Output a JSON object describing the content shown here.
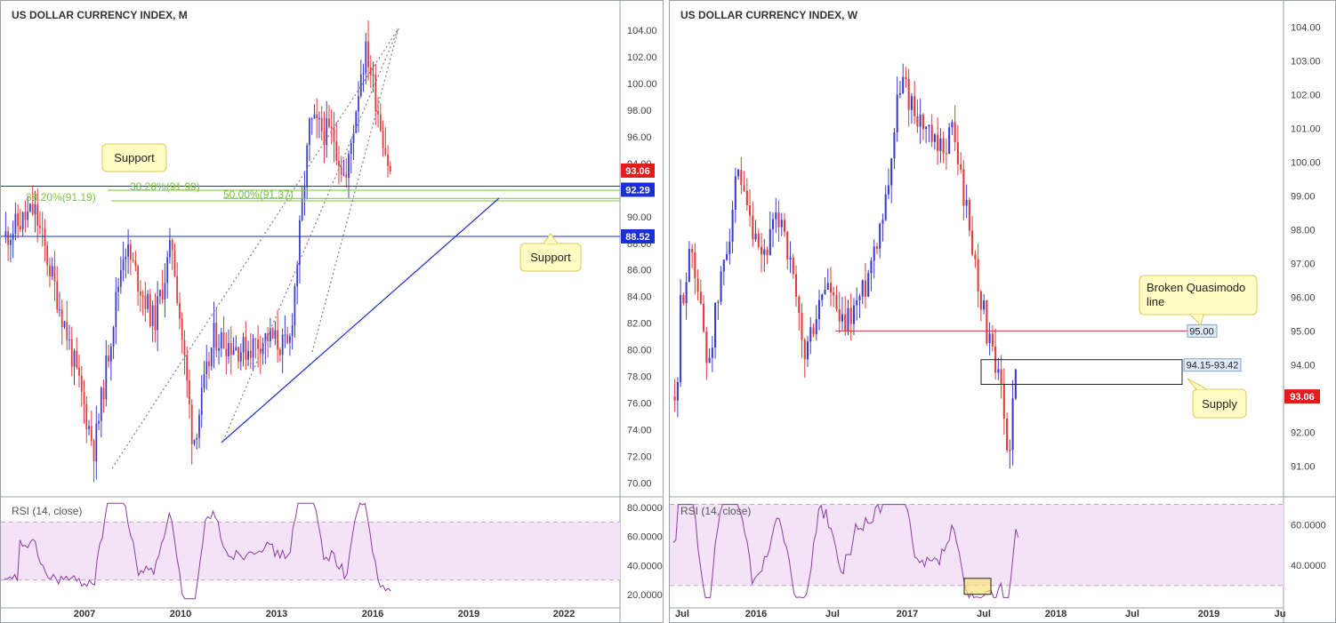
{
  "panels": [
    {
      "title": "US DOLLAR CURRENCY INDEX, M",
      "rsi_label": "RSI (14, close)",
      "y_ticks": [
        "104.00",
        "102.00",
        "100.00",
        "98.00",
        "96.00",
        "94.00",
        "92.00",
        "90.00",
        "88.00",
        "86.00",
        "84.00",
        "82.00",
        "80.00",
        "78.00",
        "76.00",
        "74.00",
        "72.00",
        "70.00"
      ],
      "x_ticks": [
        "2007",
        "2010",
        "2013",
        "2016",
        "2019",
        "2022"
      ],
      "rsi_ticks": [
        "80.0000",
        "60.0000",
        "40.0000",
        "20.0000"
      ],
      "price_badges": [
        {
          "text": "93.06",
          "color": "#e31b1b"
        },
        {
          "text": "92.29",
          "color": "#1a2fd6"
        },
        {
          "text": "88.52",
          "color": "#1a2fd6"
        }
      ],
      "annotations": {
        "fib_382": "38.20%(91.99)",
        "fib_382b": "38.20%(91.19)",
        "fib_500": "50.00%(91.37)",
        "callout_support_top": "Support",
        "callout_support_bottom": "Support"
      }
    },
    {
      "title": "US DOLLAR CURRENCY INDEX, W",
      "rsi_label": "RSI (14, close)",
      "y_ticks": [
        "104.00",
        "103.00",
        "102.00",
        "101.00",
        "100.00",
        "99.00",
        "98.00",
        "97.00",
        "96.00",
        "95.00",
        "94.00",
        "93.00",
        "92.00",
        "91.00"
      ],
      "x_ticks": [
        "Jul",
        "2016",
        "Jul",
        "2017",
        "Jul",
        "2018",
        "Jul",
        "2019",
        "Ju"
      ],
      "rsi_ticks": [
        "60.0000",
        "40.0000"
      ],
      "price_badges": [
        {
          "text": "93.06",
          "color": "#e31b1b"
        }
      ],
      "annotations": {
        "level_950": "95.00",
        "supply_zone": "94.15-93.42",
        "callout_quasimodo": "Broken Quasimodo line",
        "callout_supply": "Supply"
      }
    }
  ],
  "colors": {
    "bull": "#3b3bd1",
    "bear": "#e23b3b",
    "rsi_line": "#8e3aa5",
    "rsi_band": "#f3e3f7",
    "fib": "#7cc242"
  },
  "chart_data": [
    {
      "type": "candlestick",
      "title": "US DOLLAR CURRENCY INDEX, M",
      "ylim": [
        69.5,
        105
      ],
      "x_range": [
        "2005",
        "2023"
      ],
      "last_price": 93.06,
      "levels": [
        92.29,
        88.52
      ],
      "fib_levels": [
        {
          "label": "38.20%(91.99)",
          "value": 91.99
        },
        {
          "label": "38.20%(91.19)",
          "value": 91.19
        },
        {
          "label": "50.00%(91.37)",
          "value": 91.37
        }
      ],
      "trend_path": [
        [
          2005.0,
          88.5
        ],
        [
          2006.0,
          90.5
        ],
        [
          2007.0,
          82
        ],
        [
          2008.0,
          72.5
        ],
        [
          2009.0,
          88
        ],
        [
          2010.0,
          82
        ],
        [
          2010.6,
          88
        ],
        [
          2011.3,
          73
        ],
        [
          2012.0,
          81
        ],
        [
          2013.0,
          80
        ],
        [
          2013.8,
          81
        ],
        [
          2014.5,
          80
        ],
        [
          2015.2,
          97
        ],
        [
          2016.0,
          96
        ],
        [
          2016.4,
          92.5
        ],
        [
          2016.9,
          101
        ],
        [
          2017.1,
          102.5
        ],
        [
          2017.9,
          93
        ]
      ],
      "rsi": {
        "name": "RSI (14, close)",
        "ylim": [
          15,
          85
        ]
      }
    },
    {
      "type": "candlestick",
      "title": "US DOLLAR CURRENCY INDEX, W",
      "ylim": [
        90.3,
        104.3
      ],
      "x_range": [
        "2015-06",
        "2019-07"
      ],
      "last_price": 93.06,
      "levels": [
        95.0
      ],
      "zones": [
        {
          "label": "94.15-93.42",
          "top": 94.15,
          "bottom": 93.42
        }
      ],
      "trend_path": [
        [
          2015.45,
          95.5
        ],
        [
          2015.55,
          97.5
        ],
        [
          2015.65,
          94
        ],
        [
          2015.85,
          99.5
        ],
        [
          2016.0,
          97
        ],
        [
          2016.15,
          98.5
        ],
        [
          2016.3,
          94.2
        ],
        [
          2016.45,
          96.5
        ],
        [
          2016.55,
          95
        ],
        [
          2016.7,
          96.2
        ],
        [
          2016.85,
          99
        ],
        [
          2016.95,
          102.5
        ],
        [
          2017.05,
          101.5
        ],
        [
          2017.2,
          100.2
        ],
        [
          2017.3,
          101
        ],
        [
          2017.45,
          97
        ],
        [
          2017.55,
          94.5
        ],
        [
          2017.63,
          93
        ],
        [
          2017.67,
          91.2
        ],
        [
          2017.72,
          93.7
        ],
        [
          2017.74,
          93.06
        ]
      ],
      "rsi": {
        "name": "RSI (14, close)",
        "ylim": [
          22,
          72
        ]
      }
    }
  ]
}
